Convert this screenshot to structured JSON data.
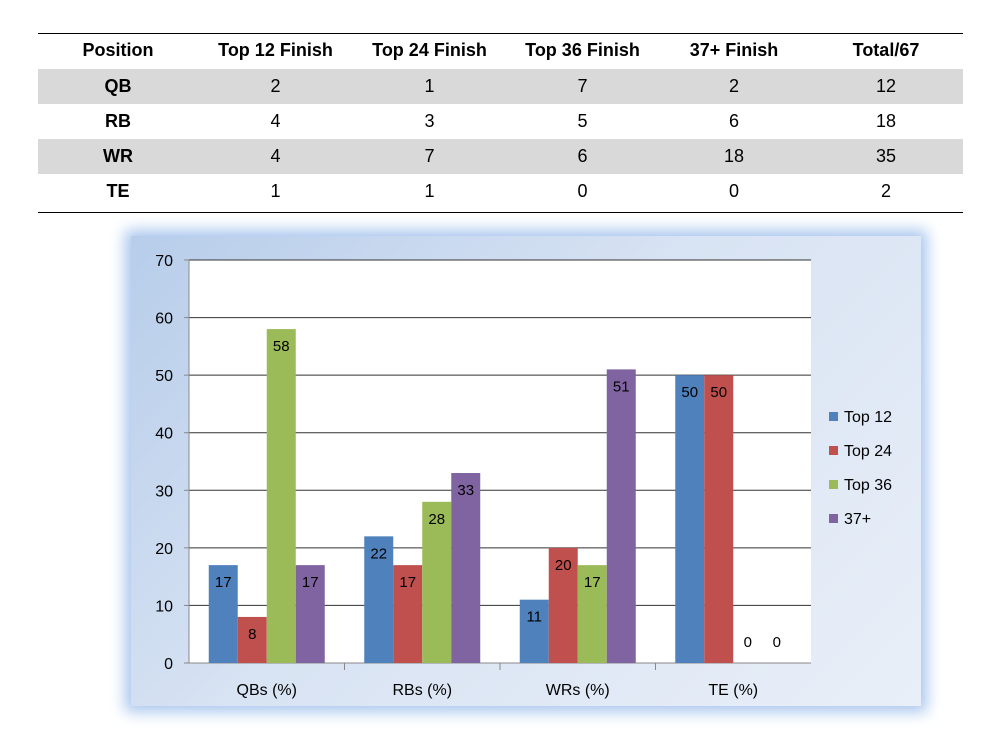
{
  "table": {
    "headers": [
      "Position",
      "Top 12 Finish",
      "Top 24 Finish",
      "Top 36 Finish",
      "37+ Finish",
      "Total/67"
    ],
    "rows": [
      {
        "position": "QB",
        "cells": [
          "2",
          "1",
          "7",
          "2",
          "12"
        ]
      },
      {
        "position": "RB",
        "cells": [
          "4",
          "3",
          "5",
          "6",
          "18"
        ]
      },
      {
        "position": "WR",
        "cells": [
          "4",
          "7",
          "6",
          "18",
          "35"
        ]
      },
      {
        "position": "TE",
        "cells": [
          "1",
          "1",
          "0",
          "0",
          "2"
        ]
      }
    ]
  },
  "chart_data": {
    "type": "bar",
    "categories": [
      "QBs (%)",
      "RBs (%)",
      "WRs (%)",
      "TE (%)"
    ],
    "series": [
      {
        "name": "Top 12",
        "color": "#4f81bd",
        "values": [
          17,
          22,
          11,
          50
        ]
      },
      {
        "name": "Top 24",
        "color": "#c0504d",
        "values": [
          8,
          17,
          20,
          50
        ]
      },
      {
        "name": "Top 36",
        "color": "#9bbb59",
        "values": [
          58,
          28,
          17,
          0
        ]
      },
      {
        "name": "37+",
        "color": "#8064a2",
        "values": [
          17,
          33,
          51,
          0
        ]
      }
    ],
    "ylim": [
      0,
      70
    ],
    "yticks": [
      0,
      10,
      20,
      30,
      40,
      50,
      60,
      70
    ],
    "grid": true,
    "legend": "right",
    "data_labels": true
  }
}
